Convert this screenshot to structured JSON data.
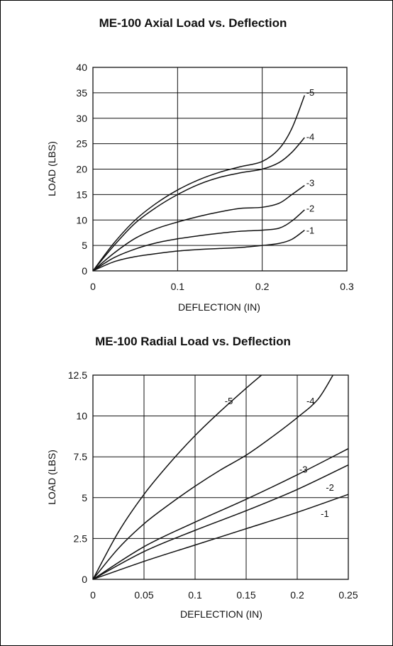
{
  "chart_data": [
    {
      "type": "line",
      "title": "ME-100 Axial Load vs. Deflection",
      "xlabel": "DEFLECTION (IN)",
      "ylabel": "LOAD (LBS)",
      "xlim": [
        0,
        0.3
      ],
      "ylim": [
        0,
        40
      ],
      "xticks": [
        0,
        0.1,
        0.2,
        0.3
      ],
      "xtick_labels": [
        "0",
        "0.1",
        "0.2",
        "0.3"
      ],
      "yticks": [
        0,
        5,
        10,
        15,
        20,
        25,
        30,
        35,
        40
      ],
      "ytick_labels": [
        "0",
        "5",
        "10",
        "15",
        "20",
        "25",
        "30",
        "35",
        "40"
      ],
      "grid": true,
      "series": [
        {
          "name": "-5",
          "x": [
            0,
            0.025,
            0.05,
            0.075,
            0.1,
            0.125,
            0.15,
            0.175,
            0.2,
            0.22,
            0.235,
            0.25
          ],
          "y": [
            0,
            5.5,
            10,
            13.3,
            15.9,
            17.9,
            19.4,
            20.5,
            21.5,
            24,
            28,
            34.5
          ]
        },
        {
          "name": "-4",
          "x": [
            0,
            0.025,
            0.05,
            0.075,
            0.1,
            0.125,
            0.15,
            0.175,
            0.2,
            0.22,
            0.235,
            0.25
          ],
          "y": [
            0,
            5,
            9.4,
            12.5,
            15,
            17,
            18.4,
            19.3,
            20,
            21.3,
            23.3,
            26.2
          ]
        },
        {
          "name": "-3",
          "x": [
            0,
            0.025,
            0.05,
            0.075,
            0.1,
            0.125,
            0.15,
            0.175,
            0.2,
            0.22,
            0.235,
            0.25
          ],
          "y": [
            0,
            3.5,
            6.4,
            8.3,
            9.6,
            10.7,
            11.6,
            12.3,
            12.5,
            13.3,
            15,
            16.8
          ]
        },
        {
          "name": "-2",
          "x": [
            0,
            0.025,
            0.05,
            0.075,
            0.1,
            0.125,
            0.15,
            0.175,
            0.2,
            0.22,
            0.235,
            0.25
          ],
          "y": [
            0,
            2.6,
            4.3,
            5.5,
            6.3,
            6.9,
            7.4,
            7.8,
            8,
            8.4,
            9.8,
            12
          ]
        },
        {
          "name": "-1",
          "x": [
            0,
            0.025,
            0.05,
            0.075,
            0.1,
            0.125,
            0.15,
            0.175,
            0.2,
            0.22,
            0.235,
            0.25
          ],
          "y": [
            0,
            1.8,
            2.8,
            3.4,
            3.9,
            4.2,
            4.4,
            4.6,
            5,
            5.4,
            6.2,
            8
          ]
        }
      ],
      "curve_labels": [
        "-5",
        "-4",
        "-3",
        "-2",
        "-1"
      ]
    },
    {
      "type": "line",
      "title": "ME-100 Radial Load vs. Deflection",
      "xlabel": "DEFLECTION (IN)",
      "ylabel": "LOAD (LBS)",
      "xlim": [
        0,
        0.25
      ],
      "ylim": [
        0,
        12.5
      ],
      "xticks": [
        0,
        0.05,
        0.1,
        0.15,
        0.2,
        0.25
      ],
      "xtick_labels": [
        "0",
        "0.05",
        "0.1",
        "0.15",
        "0.2",
        "0.25"
      ],
      "yticks": [
        0,
        2.5,
        5,
        7.5,
        10,
        12.5
      ],
      "ytick_labels": [
        "0",
        "2.5",
        "5",
        "7.5",
        "10",
        "12.5"
      ],
      "grid": true,
      "series": [
        {
          "name": "-5",
          "x": [
            0,
            0.025,
            0.05,
            0.075,
            0.1,
            0.125,
            0.15,
            0.165
          ],
          "y": [
            0,
            2.9,
            5.2,
            7.1,
            8.8,
            10.3,
            11.7,
            12.5
          ]
        },
        {
          "name": "-4",
          "x": [
            0,
            0.025,
            0.05,
            0.075,
            0.1,
            0.125,
            0.15,
            0.175,
            0.2,
            0.22,
            0.235
          ],
          "y": [
            0,
            1.9,
            3.4,
            4.6,
            5.7,
            6.7,
            7.6,
            8.7,
            9.9,
            11,
            12.5
          ]
        },
        {
          "name": "-3",
          "x": [
            0,
            0.05,
            0.1,
            0.15,
            0.2,
            0.25
          ],
          "y": [
            0,
            2,
            3.5,
            4.9,
            6.4,
            8
          ]
        },
        {
          "name": "-2",
          "x": [
            0,
            0.05,
            0.1,
            0.15,
            0.2,
            0.25
          ],
          "y": [
            0,
            1.7,
            3,
            4.2,
            5.5,
            7
          ]
        },
        {
          "name": "-1",
          "x": [
            0,
            0.05,
            0.1,
            0.15,
            0.2,
            0.25
          ],
          "y": [
            0,
            1.1,
            2.1,
            3.1,
            4.1,
            5.2
          ]
        }
      ],
      "curve_labels": [
        "-5",
        "-4",
        "-3",
        "-2",
        "-1"
      ]
    }
  ]
}
